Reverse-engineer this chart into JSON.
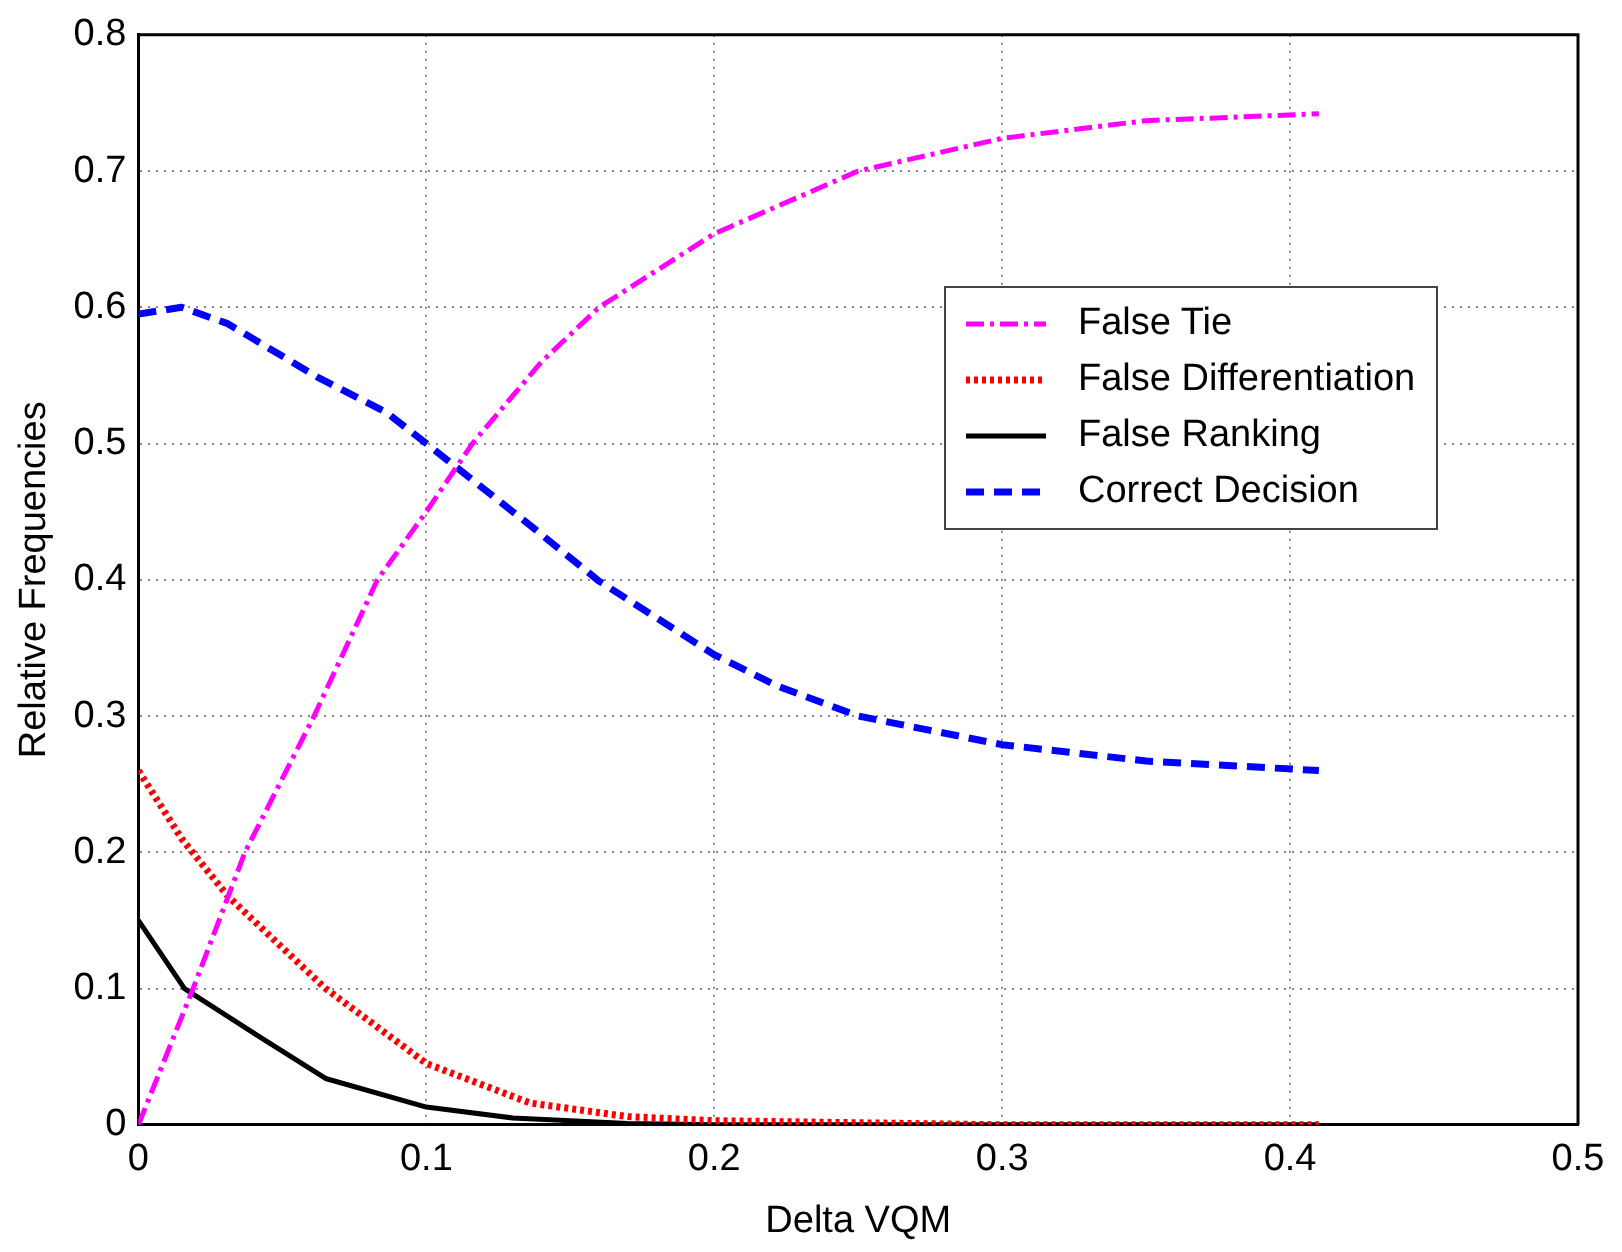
{
  "chart_data": {
    "type": "line",
    "xlabel": "Delta VQM",
    "ylabel": "Relative Frequencies",
    "xlim": [
      0,
      0.5
    ],
    "xticks": [
      0,
      0.1,
      0.2,
      0.3,
      0.4,
      0.5
    ],
    "ylim": [
      0,
      0.8
    ],
    "yticks": [
      0,
      0.1,
      0.2,
      0.3,
      0.4,
      0.5,
      0.6,
      0.7,
      0.8
    ],
    "grid": true,
    "legend": "right",
    "marker": "none",
    "series": [
      {
        "name": "False Tie",
        "color": "#ff00ff",
        "line_style": "dashdot",
        "x": [
          0,
          0.019,
          0.037,
          0.061,
          0.083,
          0.1,
          0.116,
          0.14,
          0.16,
          0.2,
          0.25,
          0.3,
          0.35,
          0.41
        ],
        "values": [
          0,
          0.1,
          0.2,
          0.3,
          0.4,
          0.45,
          0.5,
          0.56,
          0.6,
          0.654,
          0.7,
          0.724,
          0.737,
          0.742
        ]
      },
      {
        "name": "False Differentiation",
        "color": "#ff0000",
        "line_style": "dotted",
        "x": [
          0,
          0.015,
          0.031,
          0.065,
          0.1,
          0.136,
          0.17,
          0.2,
          0.3,
          0.41
        ],
        "values": [
          0.26,
          0.21,
          0.168,
          0.1,
          0.045,
          0.016,
          0.006,
          0.003,
          0,
          0
        ]
      },
      {
        "name": "False Ranking",
        "color": "#000000",
        "line_style": "solid",
        "x": [
          0,
          0.016,
          0.041,
          0.065,
          0.1,
          0.13,
          0.17,
          0.2,
          0.3,
          0.41
        ],
        "values": [
          0.15,
          0.1,
          0.066,
          0.034,
          0.013,
          0.005,
          0.001,
          0,
          0,
          0
        ]
      },
      {
        "name": "Correct Decision",
        "color": "#0000ff",
        "line_style": "dashed",
        "x": [
          0,
          0.015,
          0.031,
          0.062,
          0.086,
          0.1,
          0.136,
          0.16,
          0.2,
          0.222,
          0.25,
          0.3,
          0.35,
          0.41
        ],
        "values": [
          0.595,
          0.6,
          0.588,
          0.549,
          0.523,
          0.5,
          0.44,
          0.399,
          0.345,
          0.322,
          0.3,
          0.279,
          0.267,
          0.26
        ]
      }
    ]
  }
}
